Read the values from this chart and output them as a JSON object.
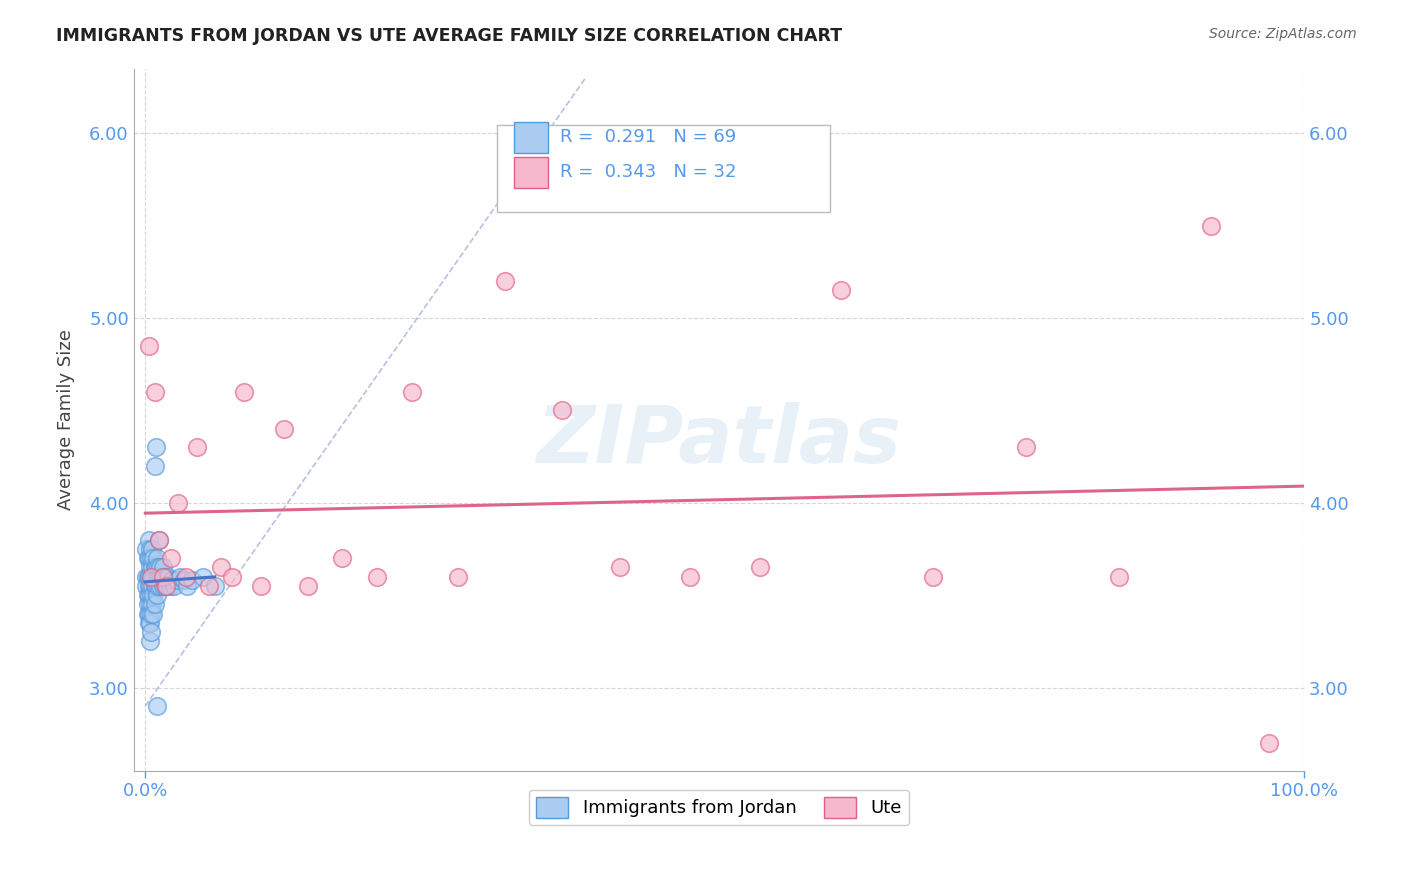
{
  "title": "IMMIGRANTS FROM JORDAN VS UTE AVERAGE FAMILY SIZE CORRELATION CHART",
  "source": "Source: ZipAtlas.com",
  "ylabel": "Average Family Size",
  "xlim": [
    -0.01,
    1.0
  ],
  "ylim": [
    2.55,
    6.35
  ],
  "xticks": [
    0.0,
    1.0
  ],
  "xticklabels": [
    "0.0%",
    "100.0%"
  ],
  "yticks": [
    3.0,
    4.0,
    5.0,
    6.0
  ],
  "yticklabels": [
    "3.00",
    "4.00",
    "5.00",
    "6.00"
  ],
  "jordan_R": "0.291",
  "jordan_N": "69",
  "ute_R": "0.343",
  "ute_N": "32",
  "jordan_color": "#aaccf0",
  "ute_color": "#f5b8cc",
  "jordan_edge_color": "#5599dd",
  "ute_edge_color": "#e06080",
  "jordan_line_color": "#4477cc",
  "ute_line_color": "#dd6688",
  "diag_line_color": "#8899cc",
  "background_color": "#ffffff",
  "grid_color": "#cccccc",
  "watermark": "ZIPatlas",
  "tick_color": "#5599ee",
  "jordan_x": [
    0.001,
    0.001,
    0.001,
    0.002,
    0.002,
    0.002,
    0.002,
    0.002,
    0.003,
    0.003,
    0.003,
    0.003,
    0.003,
    0.003,
    0.003,
    0.004,
    0.004,
    0.004,
    0.004,
    0.004,
    0.004,
    0.005,
    0.005,
    0.005,
    0.005,
    0.005,
    0.006,
    0.006,
    0.006,
    0.006,
    0.007,
    0.007,
    0.007,
    0.007,
    0.008,
    0.008,
    0.008,
    0.009,
    0.009,
    0.01,
    0.01,
    0.01,
    0.011,
    0.011,
    0.012,
    0.013,
    0.013,
    0.014,
    0.015,
    0.015,
    0.016,
    0.017,
    0.018,
    0.019,
    0.02,
    0.021,
    0.023,
    0.025,
    0.027,
    0.03,
    0.033,
    0.036,
    0.04,
    0.05,
    0.06,
    0.008,
    0.009,
    0.01,
    0.012
  ],
  "jordan_y": [
    3.75,
    3.6,
    3.55,
    3.7,
    3.6,
    3.5,
    3.45,
    3.4,
    3.8,
    3.7,
    3.6,
    3.55,
    3.5,
    3.4,
    3.35,
    3.75,
    3.65,
    3.55,
    3.45,
    3.35,
    3.25,
    3.7,
    3.6,
    3.5,
    3.4,
    3.3,
    3.75,
    3.65,
    3.55,
    3.45,
    3.7,
    3.6,
    3.5,
    3.4,
    3.65,
    3.55,
    3.45,
    3.65,
    3.55,
    3.7,
    3.6,
    3.5,
    3.65,
    3.55,
    3.6,
    3.65,
    3.55,
    3.6,
    3.65,
    3.55,
    3.6,
    3.55,
    3.6,
    3.55,
    3.6,
    3.55,
    3.58,
    3.55,
    3.58,
    3.6,
    3.58,
    3.55,
    3.58,
    3.6,
    3.55,
    4.2,
    4.3,
    2.9,
    3.8
  ],
  "ute_x": [
    0.003,
    0.005,
    0.008,
    0.012,
    0.015,
    0.018,
    0.022,
    0.028,
    0.035,
    0.045,
    0.055,
    0.065,
    0.075,
    0.085,
    0.1,
    0.12,
    0.14,
    0.17,
    0.2,
    0.23,
    0.27,
    0.31,
    0.36,
    0.41,
    0.47,
    0.53,
    0.6,
    0.68,
    0.76,
    0.84,
    0.92,
    0.97
  ],
  "ute_y": [
    4.85,
    3.6,
    4.6,
    3.8,
    3.6,
    3.55,
    3.7,
    4.0,
    3.6,
    4.3,
    3.55,
    3.65,
    3.6,
    4.6,
    3.55,
    4.4,
    3.55,
    3.7,
    3.6,
    4.6,
    3.6,
    5.2,
    4.5,
    3.65,
    3.6,
    3.65,
    5.15,
    3.6,
    4.3,
    3.6,
    5.5,
    2.7
  ],
  "legend_jordan_label": "Immigrants from Jordan",
  "legend_ute_label": "Ute"
}
